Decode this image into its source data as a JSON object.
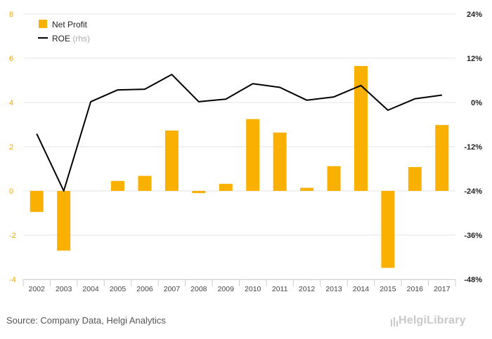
{
  "chart_data": {
    "type": "bar",
    "categories": [
      "2002",
      "2003",
      "2004",
      "2005",
      "2006",
      "2007",
      "2008",
      "2009",
      "2010",
      "2011",
      "2012",
      "2013",
      "2014",
      "2015",
      "2016",
      "2017"
    ],
    "series": [
      {
        "name": "Net Profit",
        "type": "bar",
        "axis": "left",
        "color": "#f9b000",
        "values": [
          -0.95,
          -2.7,
          0,
          0.45,
          0.68,
          2.73,
          -0.1,
          0.32,
          3.25,
          2.64,
          0.14,
          1.12,
          5.65,
          -3.48,
          1.08,
          2.98
        ]
      },
      {
        "name": "ROE",
        "note": "(rhs)",
        "type": "line",
        "axis": "right",
        "color": "#000000",
        "values": [
          -8.5,
          -24,
          0.2,
          3.4,
          3.6,
          7.6,
          0.2,
          0.9,
          5.1,
          4.1,
          0.6,
          1.5,
          4.6,
          -2.1,
          1.0,
          2.0
        ]
      }
    ],
    "yLeft": {
      "min": -4,
      "max": 8,
      "ticks": [
        "-4",
        "-2",
        "0",
        "2",
        "4",
        "6",
        "8"
      ]
    },
    "yRight": {
      "min": -48,
      "max": 24,
      "ticks": [
        "-48%",
        "-36%",
        "-24%",
        "-12%",
        "0%",
        "12%",
        "24%"
      ]
    },
    "grid": true,
    "legend": "top-left"
  },
  "footer": {
    "source": "Source: Company Data, Helgi Analytics",
    "brand": "HelgiLibrary"
  }
}
